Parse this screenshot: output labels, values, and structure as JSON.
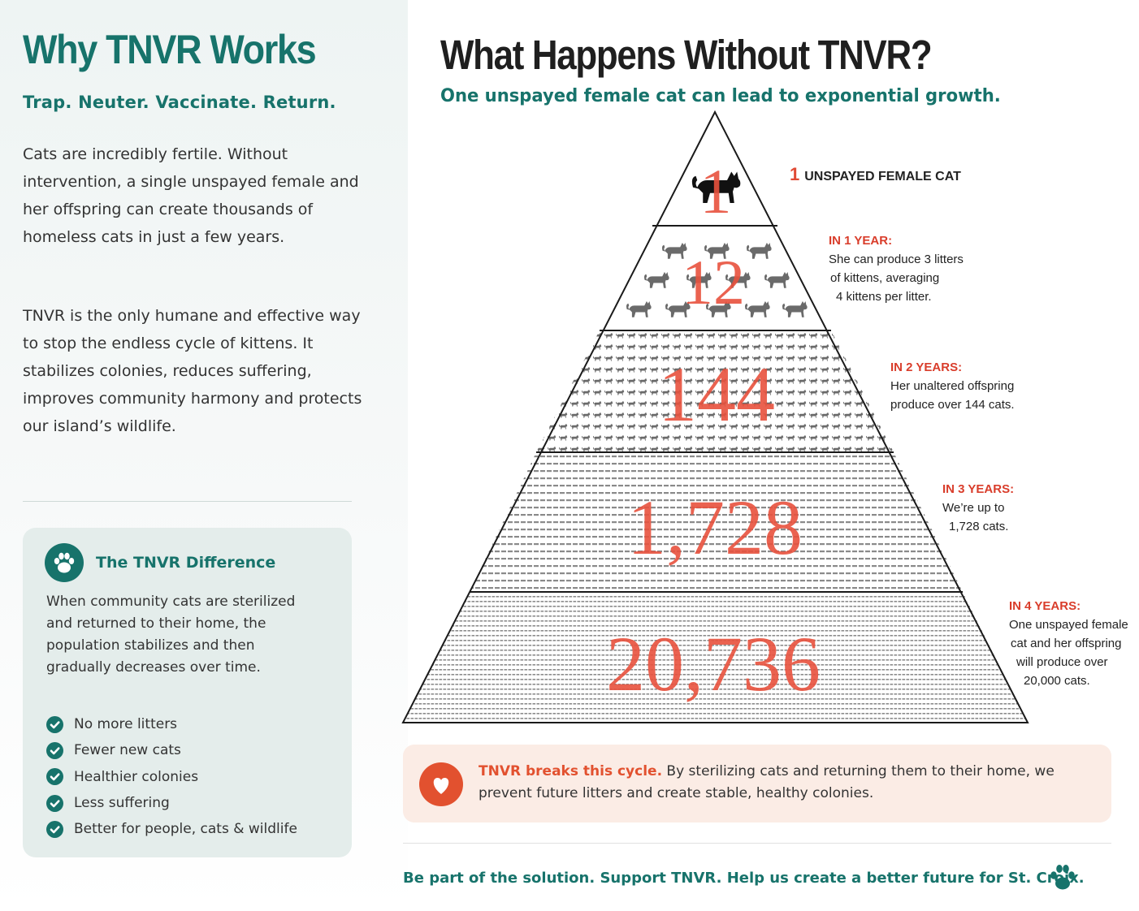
{
  "left": {
    "title": "Why TNVR Works",
    "subtitle": "Trap. Neuter. Vaccinate. Return.",
    "paragraph1": "Cats are incredibly fertile. Without intervention, a single unspayed female and her offspring can create thousands of homeless cats in just a few years.",
    "paragraph2": "TNVR is the only humane and effective way to stop the endless cycle of kittens. It stabilizes colonies, reduces suffering, improves community harmony and protects our island’s wildlife.",
    "card": {
      "icon": "paw-icon",
      "title": "The TNVR Difference",
      "text": "When community cats are sterilized and returned to their home, the population stabilizes and then gradually decreases over time.",
      "items": [
        {
          "label": "No more litters"
        },
        {
          "label": "Fewer new cats"
        },
        {
          "label": "Healthier colonies"
        },
        {
          "label": "Less suffering"
        },
        {
          "label": "Better for people, cats & wildlife"
        }
      ]
    }
  },
  "right": {
    "title": "What Happens Without TNVR?",
    "subtitle": "One unspayed female cat can lead to exponential growth.",
    "pyramid": {
      "tiers": [
        {
          "number": "1",
          "heading": "",
          "label": "UNSPAYED FEMALE CAT",
          "lines": []
        },
        {
          "number": "12",
          "heading": "IN 1 YEAR:",
          "lines": [
            "She can produce 3 litters",
            "of kittens, averaging",
            "4 kittens per litter."
          ]
        },
        {
          "number": "144",
          "heading": "IN 2 YEARS:",
          "lines": [
            "Her unaltered offspring",
            "produce over 144 cats."
          ]
        },
        {
          "number": "1,728",
          "heading": "IN 3 YEARS:",
          "lines": [
            "We’re up to",
            "1,728 cats."
          ]
        },
        {
          "number": "20,736",
          "heading": "IN 4 YEARS:",
          "lines": [
            "One unspayed female",
            "cat and her offspring",
            "will produce over",
            "20,000 cats."
          ]
        }
      ]
    },
    "cycle": {
      "icon": "heart-icon",
      "strong": "TNVR breaks this cycle.",
      "text": " By sterilizing cats and returning them to their home, we prevent future litters and create stable, healthy colonies."
    },
    "footer": "Be part of the solution. Support TNVR. Help us create a better future for St. Croix.",
    "footer_icon": "paw-icon"
  },
  "colors": {
    "teal": "#17736b",
    "accent_red": "#e04a35",
    "card_bg": "#e4edeb",
    "cycle_bg": "#fbece5"
  }
}
